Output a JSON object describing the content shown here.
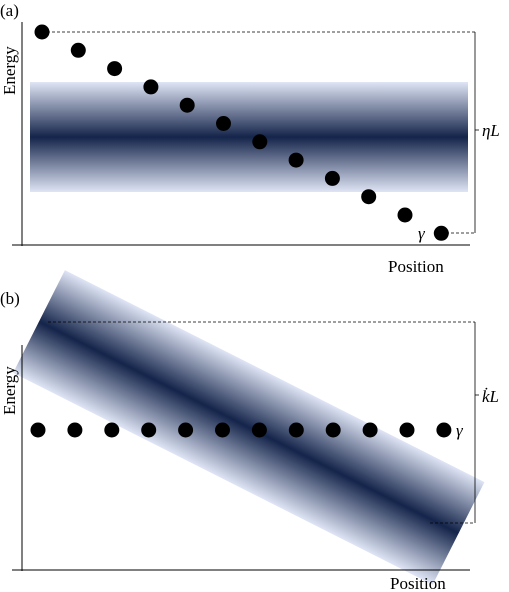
{
  "panels": [
    {
      "label": "(a)",
      "y_label": "Energy",
      "x_label": "Position",
      "span_label": "ηL",
      "gap_label": "γ"
    },
    {
      "label": "(b)",
      "y_label": "Energy",
      "x_label": "Position",
      "span_label": "k̇L",
      "gap_label": "γ"
    }
  ]
}
